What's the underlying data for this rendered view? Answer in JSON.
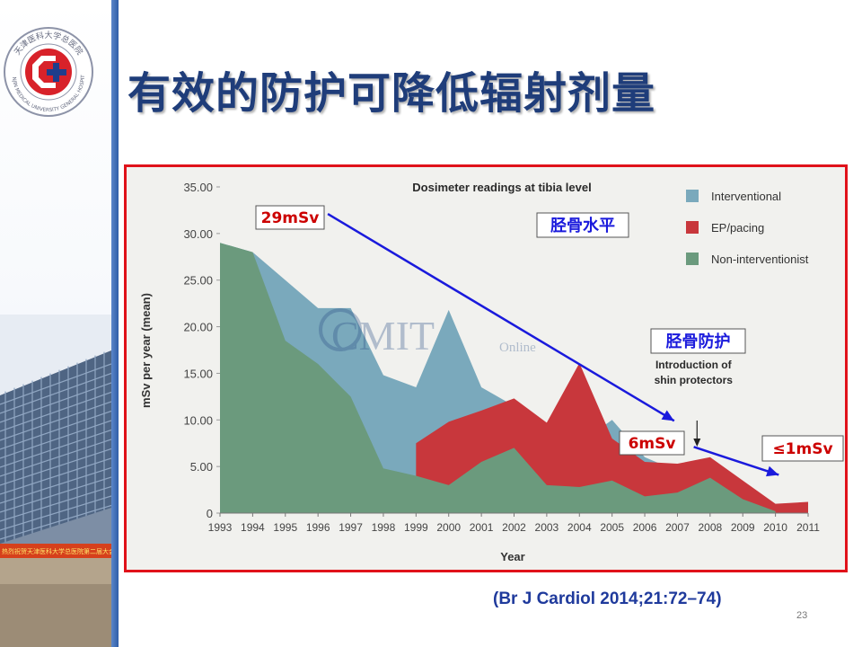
{
  "slide": {
    "title": "有效的防护可降低辐射剂量",
    "citation": "(Br J Cardiol 2014;21:72–74)",
    "page_number": "23",
    "logo_text": "天津医科大学总医院",
    "logo_text_en": "TIANJIN MEDICAL UNIVERSITY GENERAL HOSPITAL",
    "building_banner": "热烈祝贺天津医科大学总医院第二届大会召开"
  },
  "colors": {
    "interventional": "#7aa9bc",
    "ep_pacing": "#c8373c",
    "non_interventionist": "#6b9a7d",
    "arrow": "#1a1adc",
    "frame": "#e0121a",
    "title": "#1f3d7a"
  },
  "chart_data": {
    "type": "area",
    "title": "Dosimeter readings at tibia level",
    "xlabel": "Year",
    "ylabel": "mSv per year (mean)",
    "ylim": [
      0,
      35
    ],
    "yticks": [
      "35.00",
      "30.00",
      "25.00",
      "20.00",
      "15.00",
      "10.00",
      "5.00",
      "0"
    ],
    "x": [
      1993,
      1994,
      1995,
      1996,
      1997,
      1998,
      1999,
      2000,
      2001,
      2002,
      2003,
      2004,
      2005,
      2006,
      2007,
      2008,
      2009,
      2010,
      2011
    ],
    "legend_position": "top-right",
    "series": [
      {
        "name": "Interventional",
        "key": "interventional",
        "x": [
          1993,
          1994,
          1995,
          1996,
          1997,
          1998,
          1999,
          2000,
          2001,
          2002,
          2003,
          2004,
          2005,
          2006,
          2007,
          2008,
          2009,
          2010
        ],
        "values": [
          29,
          28,
          25,
          22,
          22,
          14.8,
          13.5,
          21.8,
          13.5,
          11.5,
          9,
          7.5,
          10,
          6,
          4.5,
          5,
          2.5,
          0.5
        ]
      },
      {
        "name": "EP/pacing",
        "key": "ep_pacing",
        "x": [
          1999,
          2000,
          2001,
          2002,
          2003,
          2004,
          2005,
          2006,
          2007,
          2008,
          2009,
          2010,
          2011
        ],
        "values": [
          7.5,
          9.8,
          11,
          12.3,
          9.7,
          16.1,
          8,
          5.5,
          5.3,
          6,
          3.5,
          1,
          1.2
        ]
      },
      {
        "name": "Non-interventionist",
        "key": "non_interventionist",
        "x": [
          1993,
          1994,
          1995,
          1996,
          1997,
          1998,
          1999,
          2000,
          2001,
          2002,
          2003,
          2004,
          2005,
          2006,
          2007,
          2008,
          2009,
          2010
        ],
        "values": [
          29,
          28,
          18.5,
          16,
          12.5,
          4.8,
          4,
          3,
          5.5,
          7,
          3,
          2.8,
          3.5,
          1.8,
          2.2,
          3.8,
          1.5,
          0.2
        ]
      }
    ],
    "annotations": {
      "intro_text": [
        "Introduction of",
        "shin protectors"
      ],
      "intro_year": 2007.6,
      "watermark": "CMIT",
      "watermark_sub": "Online"
    },
    "callouts": [
      {
        "key": "c29",
        "text": "29mSv",
        "color": "#cc0000"
      },
      {
        "key": "c6",
        "text": "6mSv",
        "color": "#cc0000"
      },
      {
        "key": "c1",
        "text": "≤1mSv",
        "color": "#cc0000"
      },
      {
        "key": "tibia",
        "text": "胫骨水平",
        "color": "#1a1adc"
      },
      {
        "key": "protect",
        "text": "胫骨防护",
        "color": "#1a1adc"
      }
    ],
    "arrows": [
      {
        "from": [
          1996.3,
          32.1
        ],
        "to": [
          2006.9,
          9.9
        ]
      },
      {
        "from": [
          2007.5,
          7.1
        ],
        "to": [
          2010.1,
          4.1
        ]
      }
    ]
  }
}
